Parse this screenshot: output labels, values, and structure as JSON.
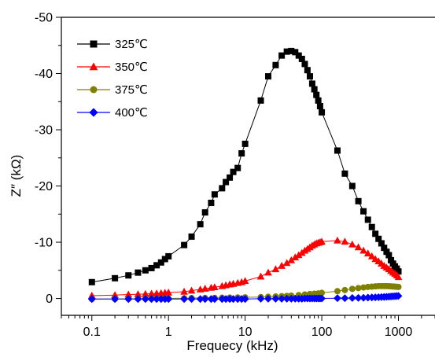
{
  "chart_data": {
    "type": "scatter",
    "title": "",
    "xlabel": "Frequecy (kHz)",
    "ylabel": "Z″ (kΩ)",
    "x_scale": "log",
    "xlim": [
      0.04,
      3000
    ],
    "ylim": [
      3,
      -50
    ],
    "x_ticks": [
      {
        "value": 0.1,
        "label": "0.1"
      },
      {
        "value": 1,
        "label": "1"
      },
      {
        "value": 10,
        "label": "10"
      },
      {
        "value": 100,
        "label": "100"
      },
      {
        "value": 1000,
        "label": "1000"
      }
    ],
    "y_ticks": [
      {
        "value": 0,
        "label": "0"
      },
      {
        "value": -10,
        "label": "-10"
      },
      {
        "value": -20,
        "label": "-20"
      },
      {
        "value": -30,
        "label": "-30"
      },
      {
        "value": -40,
        "label": "-40"
      },
      {
        "value": -50,
        "label": "-50"
      }
    ],
    "grid": false,
    "legend_position": "top-left",
    "series": [
      {
        "name": "325℃",
        "marker": "square",
        "color": "#000000",
        "points": [
          [
            0.1,
            -2.9
          ],
          [
            0.2,
            -3.6
          ],
          [
            0.3,
            -4.1
          ],
          [
            0.4,
            -4.6
          ],
          [
            0.5,
            -5.0
          ],
          [
            0.6,
            -5.4
          ],
          [
            0.7,
            -5.9
          ],
          [
            0.8,
            -6.4
          ],
          [
            0.9,
            -7.0
          ],
          [
            1.0,
            -7.5
          ],
          [
            1.6,
            -9.5
          ],
          [
            2.0,
            -11.0
          ],
          [
            2.6,
            -13.2
          ],
          [
            3.0,
            -15.3
          ],
          [
            3.6,
            -17.0
          ],
          [
            4.0,
            -18.5
          ],
          [
            5.0,
            -19.6
          ],
          [
            5.6,
            -20.7
          ],
          [
            6.3,
            -21.5
          ],
          [
            7.0,
            -22.5
          ],
          [
            8.0,
            -23.2
          ],
          [
            9.0,
            -25.8
          ],
          [
            10.0,
            -27.5
          ],
          [
            16.0,
            -35.2
          ],
          [
            20.0,
            -39.5
          ],
          [
            25.0,
            -41.5
          ],
          [
            30.0,
            -43.2
          ],
          [
            35.0,
            -43.9
          ],
          [
            40.0,
            -44.0
          ],
          [
            45.0,
            -43.8
          ],
          [
            50.0,
            -43.2
          ],
          [
            55.0,
            -42.6
          ],
          [
            60.0,
            -41.7
          ],
          [
            65.0,
            -40.6
          ],
          [
            70.0,
            -39.5
          ],
          [
            75.0,
            -38.2
          ],
          [
            80.0,
            -37.2
          ],
          [
            85.0,
            -36.2
          ],
          [
            90.0,
            -35.2
          ],
          [
            95.0,
            -34.2
          ],
          [
            100.0,
            -33.1
          ],
          [
            160.0,
            -26.3
          ],
          [
            200.0,
            -22.2
          ],
          [
            250.0,
            -20.0
          ],
          [
            300.0,
            -17.3
          ],
          [
            350.0,
            -15.5
          ],
          [
            400.0,
            -14.0
          ],
          [
            450.0,
            -12.7
          ],
          [
            500.0,
            -11.5
          ],
          [
            550.0,
            -10.6
          ],
          [
            600.0,
            -9.8
          ],
          [
            650.0,
            -9.0
          ],
          [
            700.0,
            -8.3
          ],
          [
            750.0,
            -7.7
          ],
          [
            800.0,
            -6.8
          ],
          [
            850.0,
            -6.2
          ],
          [
            900.0,
            -5.7
          ],
          [
            950.0,
            -5.3
          ],
          [
            1000.0,
            -4.8
          ]
        ]
      },
      {
        "name": "350℃",
        "marker": "triangle",
        "color": "#ff0000",
        "points": [
          [
            0.1,
            -0.5
          ],
          [
            0.2,
            -0.6
          ],
          [
            0.3,
            -0.7
          ],
          [
            0.4,
            -0.75
          ],
          [
            0.5,
            -0.8
          ],
          [
            0.6,
            -0.85
          ],
          [
            0.7,
            -0.9
          ],
          [
            0.8,
            -0.95
          ],
          [
            0.9,
            -1.0
          ],
          [
            1.0,
            -1.05
          ],
          [
            1.6,
            -1.2
          ],
          [
            2.0,
            -1.4
          ],
          [
            2.6,
            -1.6
          ],
          [
            3.0,
            -1.75
          ],
          [
            3.6,
            -1.9
          ],
          [
            4.0,
            -2.0
          ],
          [
            5.0,
            -2.2
          ],
          [
            5.6,
            -2.35
          ],
          [
            6.3,
            -2.5
          ],
          [
            7.0,
            -2.6
          ],
          [
            8.0,
            -2.75
          ],
          [
            9.0,
            -2.9
          ],
          [
            10.0,
            -3.1
          ],
          [
            16.0,
            -3.9
          ],
          [
            20.0,
            -4.6
          ],
          [
            25.0,
            -5.2
          ],
          [
            30.0,
            -5.8
          ],
          [
            35.0,
            -6.3
          ],
          [
            40.0,
            -6.8
          ],
          [
            45.0,
            -7.3
          ],
          [
            50.0,
            -7.7
          ],
          [
            55.0,
            -8.1
          ],
          [
            60.0,
            -8.5
          ],
          [
            65.0,
            -8.8
          ],
          [
            70.0,
            -9.1
          ],
          [
            75.0,
            -9.4
          ],
          [
            80.0,
            -9.6
          ],
          [
            85.0,
            -9.8
          ],
          [
            90.0,
            -9.9
          ],
          [
            95.0,
            -10.0
          ],
          [
            100.0,
            -10.1
          ],
          [
            160.0,
            -10.3
          ],
          [
            200.0,
            -10.1
          ],
          [
            250.0,
            -9.6
          ],
          [
            300.0,
            -9.1
          ],
          [
            350.0,
            -8.5
          ],
          [
            400.0,
            -8.0
          ],
          [
            450.0,
            -7.5
          ],
          [
            500.0,
            -7.0
          ],
          [
            550.0,
            -6.6
          ],
          [
            600.0,
            -6.2
          ],
          [
            650.0,
            -5.8
          ],
          [
            700.0,
            -5.5
          ],
          [
            750.0,
            -5.2
          ],
          [
            800.0,
            -4.9
          ],
          [
            850.0,
            -4.6
          ],
          [
            900.0,
            -4.4
          ],
          [
            950.0,
            -4.1
          ],
          [
            1000.0,
            -3.8
          ]
        ]
      },
      {
        "name": "375℃",
        "marker": "circle",
        "color": "#808000",
        "points": [
          [
            0.1,
            0.1
          ],
          [
            0.2,
            0.08
          ],
          [
            0.3,
            0.06
          ],
          [
            0.4,
            0.05
          ],
          [
            0.5,
            0.04
          ],
          [
            0.6,
            0.03
          ],
          [
            0.7,
            0.02
          ],
          [
            0.8,
            0.01
          ],
          [
            0.9,
            0.0
          ],
          [
            1.0,
            0.0
          ],
          [
            1.6,
            -0.05
          ],
          [
            2.0,
            -0.08
          ],
          [
            3.0,
            -0.1
          ],
          [
            4.0,
            -0.12
          ],
          [
            5.0,
            -0.14
          ],
          [
            6.3,
            -0.16
          ],
          [
            8.0,
            -0.18
          ],
          [
            10.0,
            -0.2
          ],
          [
            16.0,
            -0.25
          ],
          [
            20.0,
            -0.3
          ],
          [
            25.0,
            -0.35
          ],
          [
            30.0,
            -0.4
          ],
          [
            35.0,
            -0.45
          ],
          [
            40.0,
            -0.5
          ],
          [
            50.0,
            -0.6
          ],
          [
            60.0,
            -0.7
          ],
          [
            70.0,
            -0.8
          ],
          [
            80.0,
            -0.85
          ],
          [
            90.0,
            -0.9
          ],
          [
            100.0,
            -1.0
          ],
          [
            160.0,
            -1.3
          ],
          [
            200.0,
            -1.5
          ],
          [
            250.0,
            -1.7
          ],
          [
            300.0,
            -1.85
          ],
          [
            350.0,
            -1.95
          ],
          [
            400.0,
            -2.05
          ],
          [
            450.0,
            -2.1
          ],
          [
            500.0,
            -2.15
          ],
          [
            550.0,
            -2.2
          ],
          [
            600.0,
            -2.2
          ],
          [
            650.0,
            -2.2
          ],
          [
            700.0,
            -2.2
          ],
          [
            750.0,
            -2.18
          ],
          [
            800.0,
            -2.15
          ],
          [
            850.0,
            -2.12
          ],
          [
            900.0,
            -2.1
          ],
          [
            950.0,
            -2.07
          ],
          [
            1000.0,
            -2.05
          ]
        ]
      },
      {
        "name": "400℃",
        "marker": "diamond",
        "color": "#0000ff",
        "points": [
          [
            0.1,
            0.1
          ],
          [
            0.2,
            0.1
          ],
          [
            0.3,
            0.1
          ],
          [
            0.4,
            0.1
          ],
          [
            0.5,
            0.1
          ],
          [
            0.6,
            0.1
          ],
          [
            0.7,
            0.1
          ],
          [
            0.8,
            0.1
          ],
          [
            0.9,
            0.1
          ],
          [
            1.0,
            0.1
          ],
          [
            1.6,
            0.1
          ],
          [
            2.0,
            0.1
          ],
          [
            2.6,
            0.1
          ],
          [
            3.0,
            0.1
          ],
          [
            3.6,
            0.1
          ],
          [
            4.0,
            0.1
          ],
          [
            5.0,
            0.1
          ],
          [
            5.6,
            0.1
          ],
          [
            6.3,
            0.1
          ],
          [
            7.0,
            0.1
          ],
          [
            8.0,
            0.1
          ],
          [
            9.0,
            0.1
          ],
          [
            10.0,
            0.1
          ],
          [
            16.0,
            0.05
          ],
          [
            20.0,
            0.05
          ],
          [
            25.0,
            0.05
          ],
          [
            30.0,
            0.05
          ],
          [
            35.0,
            0.05
          ],
          [
            40.0,
            0.05
          ],
          [
            45.0,
            0.05
          ],
          [
            50.0,
            0.05
          ],
          [
            55.0,
            0.05
          ],
          [
            60.0,
            0.0
          ],
          [
            65.0,
            0.0
          ],
          [
            70.0,
            0.0
          ],
          [
            75.0,
            0.0
          ],
          [
            80.0,
            0.0
          ],
          [
            85.0,
            0.0
          ],
          [
            90.0,
            0.0
          ],
          [
            95.0,
            0.0
          ],
          [
            100.0,
            0.0
          ],
          [
            160.0,
            -0.05
          ],
          [
            200.0,
            -0.05
          ],
          [
            250.0,
            -0.08
          ],
          [
            300.0,
            -0.1
          ],
          [
            350.0,
            -0.12
          ],
          [
            400.0,
            -0.15
          ],
          [
            450.0,
            -0.18
          ],
          [
            500.0,
            -0.2
          ],
          [
            550.0,
            -0.22
          ],
          [
            600.0,
            -0.25
          ],
          [
            650.0,
            -0.27
          ],
          [
            700.0,
            -0.3
          ],
          [
            750.0,
            -0.32
          ],
          [
            800.0,
            -0.35
          ],
          [
            850.0,
            -0.38
          ],
          [
            900.0,
            -0.4
          ],
          [
            950.0,
            -0.43
          ],
          [
            1000.0,
            -0.45
          ]
        ]
      }
    ]
  }
}
